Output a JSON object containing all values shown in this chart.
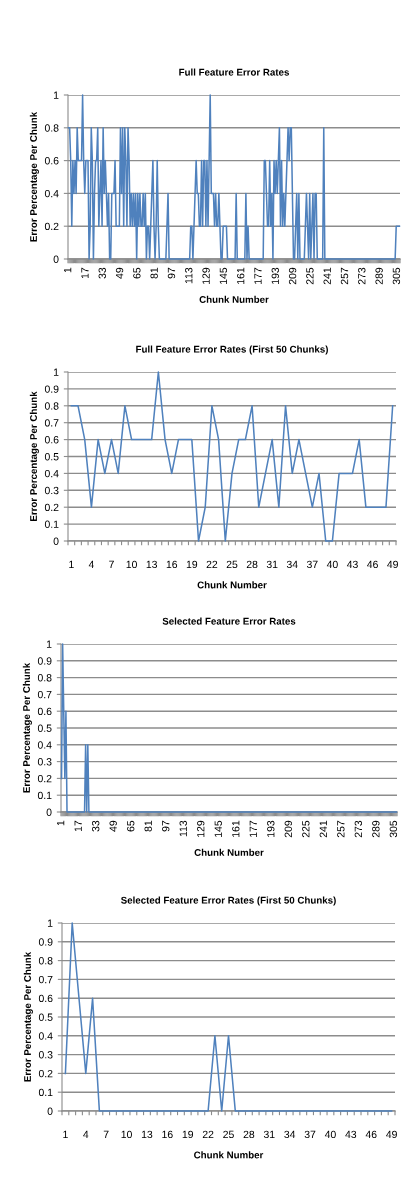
{
  "chart_data": [
    {
      "type": "line",
      "title": "Full Feature Error Rates",
      "xlabel": "Chunk Number",
      "ylabel": "Error Percentage Per Chunk",
      "grid": "y",
      "ylim": [
        0,
        1
      ],
      "yticks": [
        0,
        0.2,
        0.4,
        0.6,
        0.8,
        1
      ],
      "categories": [
        "1",
        null,
        null,
        null,
        null,
        null,
        null,
        null,
        null,
        null,
        null,
        null,
        null,
        null,
        null,
        null,
        "17",
        null,
        null,
        null,
        null,
        null,
        null,
        null,
        null,
        null,
        null,
        null,
        null,
        null,
        null,
        null,
        "33",
        null,
        null,
        null,
        null,
        null,
        null,
        null,
        null,
        null,
        null,
        null,
        null,
        null,
        null,
        null,
        "49",
        null,
        null,
        null,
        null,
        null,
        null,
        null,
        null,
        null,
        null,
        null,
        null,
        null,
        null,
        null,
        "65",
        null,
        null,
        null,
        null,
        null,
        null,
        null,
        null,
        null,
        null,
        null,
        null,
        null,
        null,
        null,
        "81",
        null,
        null,
        null,
        null,
        null,
        null,
        null,
        null,
        null,
        null,
        null,
        null,
        null,
        null,
        null,
        "97",
        null,
        null,
        null,
        null,
        null,
        null,
        null,
        null,
        null,
        null,
        null,
        null,
        null,
        null,
        null,
        "113",
        null,
        null,
        null,
        null,
        null,
        null,
        null,
        null,
        null,
        null,
        null,
        null,
        null,
        null,
        null,
        "129",
        null,
        null,
        null,
        null,
        null,
        null,
        null,
        null,
        null,
        null,
        null,
        null,
        null,
        null,
        null,
        "145",
        null,
        null,
        null,
        null,
        null,
        null,
        null,
        null,
        null,
        null,
        null,
        null,
        null,
        null,
        null,
        "161",
        null,
        null,
        null,
        null,
        null,
        null,
        null,
        null,
        null,
        null,
        null,
        null,
        null,
        null,
        null,
        "177",
        null,
        null,
        null,
        null,
        null,
        null,
        null,
        null,
        null,
        null,
        null,
        null,
        null,
        null,
        null,
        "193",
        null,
        null,
        null,
        null,
        null,
        null,
        null,
        null,
        null,
        null,
        null,
        null,
        null,
        null,
        null,
        "209",
        null,
        null,
        null,
        null,
        null,
        null,
        null,
        null,
        null,
        null,
        null,
        null,
        null,
        null,
        null,
        "225",
        null,
        null,
        null,
        null,
        null,
        null,
        null,
        null,
        null,
        null,
        null,
        null,
        null,
        null,
        null,
        "241",
        null,
        null,
        null,
        null,
        null,
        null,
        null,
        null,
        null,
        null,
        null,
        null,
        null,
        null,
        null,
        "257",
        null,
        null,
        null,
        null,
        null,
        null,
        null,
        null,
        null,
        null,
        null,
        null,
        null,
        null,
        null,
        "273",
        null,
        null,
        null,
        null,
        null,
        null,
        null,
        null,
        null,
        null,
        null,
        null,
        null,
        null,
        null,
        "289",
        null,
        null,
        null,
        null,
        null,
        null,
        null,
        null,
        null,
        null,
        null,
        null,
        null,
        null,
        null,
        "305",
        null,
        null
      ],
      "series": [
        {
          "color": "#4f81bd",
          "values": [
            0.8,
            0.8,
            0.6,
            0.2,
            0.6,
            0.4,
            0.6,
            0.4,
            0.8,
            0.6,
            0.6,
            0.6,
            0.6,
            1,
            0.6,
            0.4,
            0.6,
            0.6,
            0.6,
            0,
            0.2,
            0.8,
            0.6,
            0,
            0.4,
            0.6,
            0.6,
            0.8,
            0.2,
            0.4,
            0.6,
            0.2,
            0.8,
            0.4,
            0.6,
            0.4,
            0.2,
            0.4,
            0,
            0,
            0.4,
            0.4,
            0.4,
            0.6,
            0.2,
            0.2,
            0.2,
            0.2,
            0.8,
            0.4,
            0.8,
            0.2,
            0.8,
            0.6,
            0.2,
            0.8,
            0.6,
            0.2,
            0.4,
            0.2,
            0.4,
            0.2,
            0.4,
            0,
            0.4,
            0.2,
            0.4,
            0.2,
            0.2,
            0.4,
            0.2,
            0.4,
            0,
            0.2,
            0.2,
            0,
            0.2,
            0.4,
            0.6,
            0.2,
            0,
            0.2,
            0.6,
            0.2,
            0,
            0,
            0,
            0,
            0,
            0,
            0,
            0.2,
            0.4,
            0,
            0,
            0,
            0,
            0,
            0,
            0,
            0,
            0,
            0,
            0,
            0,
            0,
            0,
            0,
            0,
            0,
            0,
            0,
            0,
            0.2,
            0.2,
            0,
            0.2,
            0.4,
            0.6,
            0.4,
            0.4,
            0.2,
            0.2,
            0.6,
            0.2,
            0.6,
            0.6,
            0.2,
            0.6,
            0.2,
            0.6,
            1,
            0.4,
            0.4,
            0.4,
            0.2,
            0.4,
            0.2,
            0.2,
            0.4,
            0.2,
            0,
            0,
            0.2,
            0.2,
            0.2,
            0.2,
            0,
            0,
            0,
            0,
            0,
            0,
            0,
            0,
            0.4,
            0,
            0,
            0,
            0,
            0,
            0,
            0,
            0,
            0.4,
            0,
            0.2,
            0,
            0,
            0,
            0,
            0,
            0,
            0,
            0,
            0,
            0,
            0,
            0,
            0,
            0,
            0.6,
            0.6,
            0.4,
            0.2,
            0.2,
            0.6,
            0.2,
            0.4,
            0,
            0.6,
            0.4,
            0.6,
            0.4,
            0.6,
            0.8,
            0.2,
            0.6,
            0.2,
            0.4,
            0.2,
            0.4,
            0.6,
            0.8,
            0.6,
            0.8,
            0.8,
            0.4,
            0,
            0,
            0.2,
            0.4,
            0,
            0.4,
            0,
            0,
            0,
            0,
            0,
            0.2,
            0.4,
            0.2,
            0,
            0.4,
            0,
            0.2,
            0.4,
            0,
            0.4,
            0.4,
            0,
            0,
            0,
            0,
            0,
            0,
            0.8,
            0,
            0,
            0,
            0,
            0,
            0,
            0,
            0,
            0,
            0,
            0,
            0,
            0,
            0,
            0,
            0,
            0,
            0,
            0,
            0,
            0,
            0,
            0,
            0,
            0,
            0,
            0,
            0,
            0,
            0,
            0,
            0,
            0,
            0,
            0,
            0,
            0,
            0,
            0,
            0,
            0,
            0,
            0,
            0,
            0,
            0,
            0,
            0,
            0,
            0,
            0,
            0,
            0,
            0,
            0,
            0,
            0,
            0,
            0,
            0,
            0,
            0,
            0,
            0,
            0,
            0,
            0.2,
            0.2,
            0.2,
            0.2
          ]
        }
      ]
    },
    {
      "type": "line",
      "title": "Full Feature Error Rates (First 50 Chunks)",
      "xlabel": "Chunk Number",
      "ylabel": "Error Percentage Per Chunk",
      "grid": "y",
      "ylim": [
        0,
        1
      ],
      "yticks": [
        0,
        0.1,
        0.2,
        0.3,
        0.4,
        0.5,
        0.6,
        0.7,
        0.8,
        0.9,
        1
      ],
      "categories": [
        "1",
        null,
        null,
        "4",
        null,
        null,
        "7",
        null,
        null,
        "10",
        null,
        null,
        "13",
        null,
        null,
        "16",
        null,
        null,
        "19",
        null,
        null,
        "22",
        null,
        null,
        "25",
        null,
        null,
        "28",
        null,
        null,
        "31",
        null,
        null,
        "34",
        null,
        null,
        "37",
        null,
        null,
        "40",
        null,
        null,
        "43",
        null,
        null,
        "46",
        null,
        null,
        "49"
      ],
      "series": [
        {
          "color": "#4f81bd",
          "values": [
            0.8,
            0.8,
            0.6,
            0.2,
            0.6,
            0.4,
            0.6,
            0.4,
            0.8,
            0.6,
            0.6,
            0.6,
            0.6,
            1,
            0.6,
            0.4,
            0.6,
            0.6,
            0.6,
            0,
            0.2,
            0.8,
            0.6,
            0,
            0.4,
            0.6,
            0.6,
            0.8,
            0.2,
            0.4,
            0.6,
            0.2,
            0.8,
            0.4,
            0.6,
            0.4,
            0.2,
            0.4,
            0,
            0,
            0.4,
            0.4,
            0.4,
            0.6,
            0.2,
            0.2,
            0.2,
            0.2,
            0.8
          ]
        }
      ]
    },
    {
      "type": "line",
      "title": "Selected Feature Error Rates",
      "xlabel": "Chunk Number",
      "ylabel": "Error Percentage Per Chunk",
      "grid": "y",
      "ylim": [
        0,
        1
      ],
      "yticks": [
        0,
        0.1,
        0.2,
        0.3,
        0.4,
        0.5,
        0.6,
        0.7,
        0.8,
        0.9,
        1
      ],
      "categories": [
        "1",
        null,
        null,
        null,
        null,
        null,
        null,
        null,
        null,
        null,
        null,
        null,
        null,
        null,
        null,
        null,
        "17",
        null,
        null,
        null,
        null,
        null,
        null,
        null,
        null,
        null,
        null,
        null,
        null,
        null,
        null,
        null,
        "33",
        null,
        null,
        null,
        null,
        null,
        null,
        null,
        null,
        null,
        null,
        null,
        null,
        null,
        null,
        null,
        "49",
        null,
        null,
        null,
        null,
        null,
        null,
        null,
        null,
        null,
        null,
        null,
        null,
        null,
        null,
        null,
        "65",
        null,
        null,
        null,
        null,
        null,
        null,
        null,
        null,
        null,
        null,
        null,
        null,
        null,
        null,
        null,
        "81",
        null,
        null,
        null,
        null,
        null,
        null,
        null,
        null,
        null,
        null,
        null,
        null,
        null,
        null,
        null,
        "97",
        null,
        null,
        null,
        null,
        null,
        null,
        null,
        null,
        null,
        null,
        null,
        null,
        null,
        null,
        null,
        "113",
        null,
        null,
        null,
        null,
        null,
        null,
        null,
        null,
        null,
        null,
        null,
        null,
        null,
        null,
        null,
        "129",
        null,
        null,
        null,
        null,
        null,
        null,
        null,
        null,
        null,
        null,
        null,
        null,
        null,
        null,
        null,
        "145",
        null,
        null,
        null,
        null,
        null,
        null,
        null,
        null,
        null,
        null,
        null,
        null,
        null,
        null,
        null,
        "161",
        null,
        null,
        null,
        null,
        null,
        null,
        null,
        null,
        null,
        null,
        null,
        null,
        null,
        null,
        null,
        "177",
        null,
        null,
        null,
        null,
        null,
        null,
        null,
        null,
        null,
        null,
        null,
        null,
        null,
        null,
        null,
        "193",
        null,
        null,
        null,
        null,
        null,
        null,
        null,
        null,
        null,
        null,
        null,
        null,
        null,
        null,
        null,
        "209",
        null,
        null,
        null,
        null,
        null,
        null,
        null,
        null,
        null,
        null,
        null,
        null,
        null,
        null,
        null,
        "225",
        null,
        null,
        null,
        null,
        null,
        null,
        null,
        null,
        null,
        null,
        null,
        null,
        null,
        null,
        null,
        "241",
        null,
        null,
        null,
        null,
        null,
        null,
        null,
        null,
        null,
        null,
        null,
        null,
        null,
        null,
        null,
        "257",
        null,
        null,
        null,
        null,
        null,
        null,
        null,
        null,
        null,
        null,
        null,
        null,
        null,
        null,
        null,
        "273",
        null,
        null,
        null,
        null,
        null,
        null,
        null,
        null,
        null,
        null,
        null,
        null,
        null,
        null,
        null,
        "289",
        null,
        null,
        null,
        null,
        null,
        null,
        null,
        null,
        null,
        null,
        null,
        null,
        null,
        null,
        null,
        "305",
        null,
        null
      ],
      "series": [
        {
          "color": "#4f81bd",
          "values": [
            0.2,
            1,
            0.6,
            0.2,
            0.6,
            0,
            0,
            0,
            0,
            0,
            0,
            0,
            0,
            0,
            0,
            0,
            0,
            0,
            0,
            0,
            0,
            0,
            0.4,
            0,
            0.4,
            0,
            0,
            0,
            0,
            0,
            0,
            0,
            0,
            0,
            0,
            0,
            0,
            0,
            0,
            0,
            0,
            0,
            0,
            0,
            0,
            0,
            0,
            0,
            0,
            0,
            0,
            0,
            0,
            0,
            0,
            0,
            0,
            0,
            0,
            0,
            0,
            0,
            0,
            0,
            0,
            0,
            0,
            0,
            0,
            0,
            0,
            0,
            0,
            0,
            0,
            0,
            0,
            0,
            0,
            0,
            0,
            0,
            0,
            0,
            0,
            0,
            0,
            0,
            0,
            0,
            0,
            0,
            0,
            0,
            0,
            0,
            0,
            0,
            0,
            0,
            0,
            0,
            0,
            0,
            0,
            0,
            0,
            0,
            0,
            0,
            0,
            0,
            0,
            0,
            0,
            0,
            0,
            0,
            0,
            0,
            0,
            0,
            0,
            0,
            0,
            0,
            0,
            0,
            0,
            0,
            0,
            0,
            0,
            0,
            0,
            0,
            0,
            0,
            0,
            0,
            0,
            0,
            0,
            0,
            0,
            0,
            0,
            0,
            0,
            0,
            0,
            0,
            0,
            0,
            0,
            0,
            0,
            0,
            0,
            0,
            0,
            0,
            0,
            0,
            0,
            0,
            0,
            0,
            0,
            0,
            0,
            0,
            0,
            0,
            0,
            0,
            0,
            0,
            0,
            0,
            0,
            0,
            0,
            0,
            0,
            0,
            0,
            0,
            0,
            0,
            0,
            0,
            0,
            0,
            0,
            0,
            0,
            0,
            0,
            0,
            0,
            0,
            0,
            0,
            0,
            0,
            0,
            0,
            0,
            0,
            0,
            0,
            0,
            0,
            0,
            0,
            0,
            0,
            0,
            0,
            0,
            0,
            0,
            0,
            0,
            0,
            0,
            0,
            0,
            0,
            0,
            0,
            0,
            0,
            0,
            0,
            0,
            0,
            0,
            0,
            0,
            0,
            0,
            0,
            0,
            0,
            0,
            0,
            0,
            0,
            0,
            0,
            0,
            0,
            0,
            0,
            0,
            0,
            0,
            0,
            0,
            0,
            0,
            0,
            0,
            0,
            0,
            0,
            0,
            0,
            0,
            0,
            0,
            0,
            0,
            0,
            0,
            0,
            0,
            0,
            0,
            0,
            0,
            0,
            0,
            0,
            0,
            0,
            0,
            0,
            0,
            0,
            0,
            0,
            0,
            0,
            0,
            0,
            0,
            0,
            0,
            0,
            0,
            0,
            0,
            0,
            0
          ]
        }
      ]
    },
    {
      "type": "line",
      "title": "Selected Feature Error Rates (First 50 Chunks)",
      "xlabel": "Chunk Number",
      "ylabel": "Error Percentage Per Chunk",
      "grid": "y",
      "ylim": [
        0,
        1
      ],
      "yticks": [
        0,
        0.1,
        0.2,
        0.3,
        0.4,
        0.5,
        0.6,
        0.7,
        0.8,
        0.9,
        1
      ],
      "categories": [
        "1",
        null,
        null,
        "4",
        null,
        null,
        "7",
        null,
        null,
        "10",
        null,
        null,
        "13",
        null,
        null,
        "16",
        null,
        null,
        "19",
        null,
        null,
        "22",
        null,
        null,
        "25",
        null,
        null,
        "28",
        null,
        null,
        "31",
        null,
        null,
        "34",
        null,
        null,
        "37",
        null,
        null,
        "40",
        null,
        null,
        "43",
        null,
        null,
        "46",
        null,
        null,
        "49"
      ],
      "series": [
        {
          "color": "#4f81bd",
          "values": [
            0.2,
            1,
            0.6,
            0.2,
            0.6,
            0,
            0,
            0,
            0,
            0,
            0,
            0,
            0,
            0,
            0,
            0,
            0,
            0,
            0,
            0,
            0,
            0,
            0.4,
            0,
            0.4,
            0,
            0,
            0,
            0,
            0,
            0,
            0,
            0,
            0,
            0,
            0,
            0,
            0,
            0,
            0,
            0,
            0,
            0,
            0,
            0,
            0,
            0,
            0,
            0
          ]
        }
      ]
    }
  ]
}
